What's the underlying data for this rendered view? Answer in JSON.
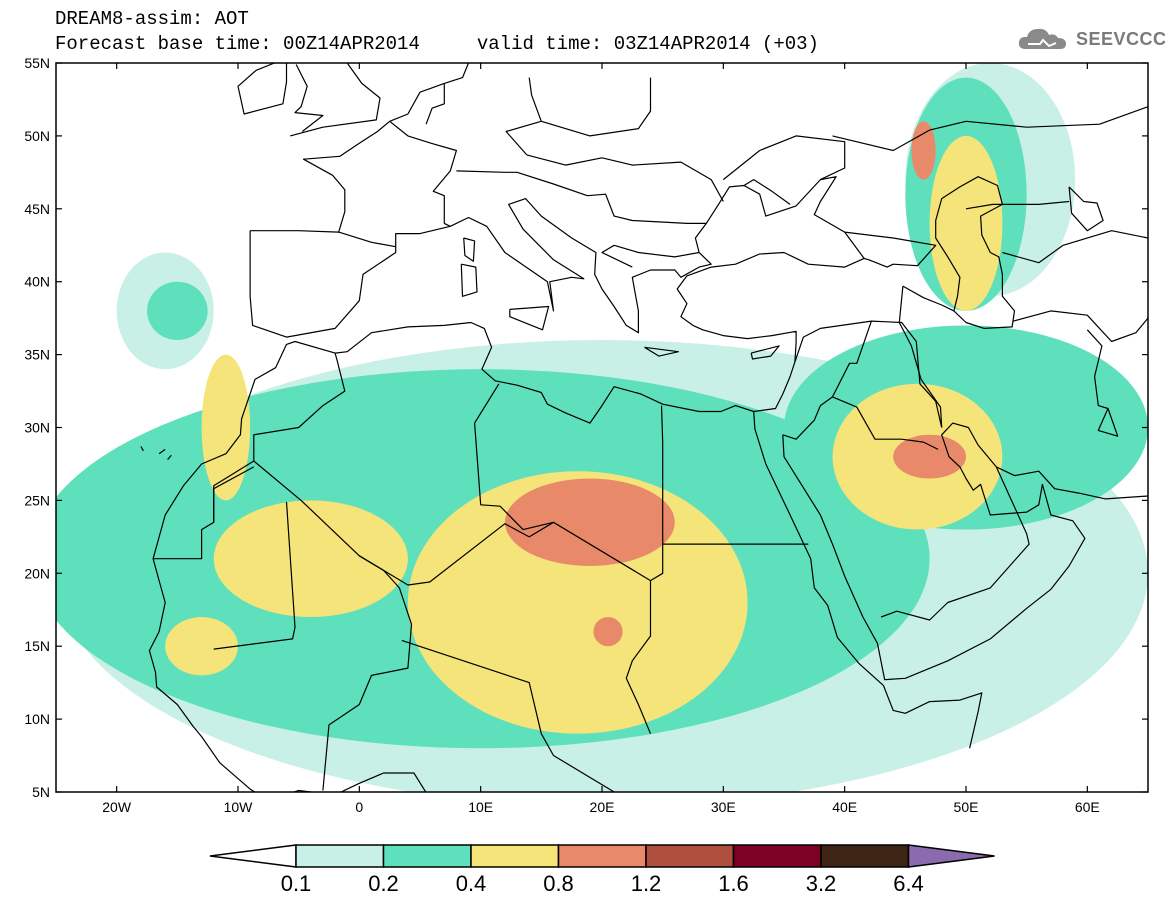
{
  "header": {
    "line1": "DREAM8-assim: AOT",
    "line2": "Forecast base time: 00Z14APR2014     valid time: 03Z14APR2014 (+03)",
    "logo_text": "SEEVCCC"
  },
  "map": {
    "lon_range": [
      -25,
      65
    ],
    "lat_range": [
      5,
      55
    ],
    "lat_ticks": [
      {
        "value": 55,
        "label": "55N"
      },
      {
        "value": 50,
        "label": "50N"
      },
      {
        "value": 45,
        "label": "45N"
      },
      {
        "value": 40,
        "label": "40N"
      },
      {
        "value": 35,
        "label": "35N"
      },
      {
        "value": 30,
        "label": "30N"
      },
      {
        "value": 25,
        "label": "25N"
      },
      {
        "value": 20,
        "label": "20N"
      },
      {
        "value": 15,
        "label": "15N"
      },
      {
        "value": 10,
        "label": "10N"
      },
      {
        "value": 5,
        "label": "5N"
      }
    ],
    "lon_ticks": [
      {
        "value": -20,
        "label": "20W"
      },
      {
        "value": -10,
        "label": "10W"
      },
      {
        "value": 0,
        "label": "0"
      },
      {
        "value": 10,
        "label": "10E"
      },
      {
        "value": 20,
        "label": "20E"
      },
      {
        "value": 30,
        "label": "30E"
      },
      {
        "value": 40,
        "label": "40E"
      },
      {
        "value": 50,
        "label": "50E"
      },
      {
        "value": 60,
        "label": "60E"
      }
    ],
    "dust_blobs": [
      {
        "level": 1,
        "lon": 20,
        "lat": 20,
        "rx": 45,
        "ry": 16
      },
      {
        "level": 1,
        "lon": 52,
        "lat": 47,
        "rx": 7,
        "ry": 8
      },
      {
        "level": 1,
        "lon": -16,
        "lat": 38,
        "rx": 4,
        "ry": 4
      },
      {
        "level": 2,
        "lon": 10,
        "lat": 21,
        "rx": 37,
        "ry": 13
      },
      {
        "level": 2,
        "lon": 50,
        "lat": 30,
        "rx": 15,
        "ry": 7
      },
      {
        "level": 2,
        "lon": 50,
        "lat": 46,
        "rx": 5,
        "ry": 8
      },
      {
        "level": 2,
        "lon": -15,
        "lat": 38,
        "rx": 2.5,
        "ry": 2
      },
      {
        "level": 3,
        "lon": 18,
        "lat": 18,
        "rx": 14,
        "ry": 9
      },
      {
        "level": 3,
        "lon": -4,
        "lat": 21,
        "rx": 8,
        "ry": 4
      },
      {
        "level": 3,
        "lon": -11,
        "lat": 30,
        "rx": 2,
        "ry": 5
      },
      {
        "level": 3,
        "lon": 46,
        "lat": 28,
        "rx": 7,
        "ry": 5
      },
      {
        "level": 3,
        "lon": 50,
        "lat": 44,
        "rx": 3,
        "ry": 6
      },
      {
        "level": 3,
        "lon": -13,
        "lat": 15,
        "rx": 3,
        "ry": 2
      },
      {
        "level": 4,
        "lon": 19,
        "lat": 23.5,
        "rx": 7,
        "ry": 3
      },
      {
        "level": 4,
        "lon": 47,
        "lat": 28,
        "rx": 3,
        "ry": 1.5
      },
      {
        "level": 4,
        "lon": 20.5,
        "lat": 16,
        "rx": 1.2,
        "ry": 1
      },
      {
        "level": 4,
        "lon": 46.5,
        "lat": 49,
        "rx": 1,
        "ry": 2
      }
    ]
  },
  "legend": {
    "colors": [
      "#ffffff",
      "#c9f0e6",
      "#5fe0bc",
      "#f4e47a",
      "#e8896a",
      "#ad4f3c",
      "#7d0025",
      "#3d2414",
      "#8b6bad"
    ],
    "labels": [
      "0.1",
      "0.2",
      "0.4",
      "0.8",
      "1.2",
      "1.6",
      "3.2",
      "6.4"
    ]
  }
}
